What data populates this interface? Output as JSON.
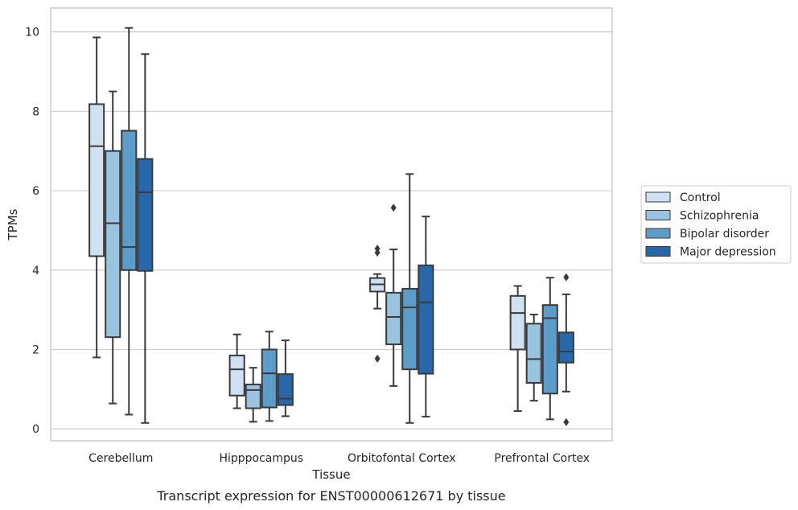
{
  "chart_data": {
    "type": "box",
    "title": "",
    "caption": "Transcript expression for ENST00000612671 by tissue",
    "xlabel": "Tissue",
    "ylabel": "TPMs",
    "ylim": [
      -0.3,
      10.6
    ],
    "yticks": [
      0,
      2,
      4,
      6,
      8,
      10
    ],
    "grid": "horizontal",
    "legend_position": "right",
    "categories": [
      "Cerebellum",
      "Hipppocampus",
      "Orbitofontal Cortex",
      "Prefrontal Cortex"
    ],
    "series": [
      {
        "name": "Control",
        "color": "#cfe0f0",
        "boxes": [
          {
            "whisker_low": 1.8,
            "q1": 4.35,
            "median": 7.12,
            "q3": 8.18,
            "whisker_high": 9.86,
            "outliers": []
          },
          {
            "whisker_low": 0.52,
            "q1": 0.84,
            "median": 1.5,
            "q3": 1.85,
            "whisker_high": 2.38,
            "outliers": []
          },
          {
            "whisker_low": 3.03,
            "q1": 3.46,
            "median": 3.64,
            "q3": 3.8,
            "whisker_high": 3.9,
            "outliers": [
              1.77,
              4.44,
              4.54
            ]
          },
          {
            "whisker_low": 0.45,
            "q1": 2.0,
            "median": 2.92,
            "q3": 3.35,
            "whisker_high": 3.6,
            "outliers": []
          }
        ]
      },
      {
        "name": "Schizophrenia",
        "color": "#9ac3df",
        "boxes": [
          {
            "whisker_low": 0.64,
            "q1": 2.31,
            "median": 5.18,
            "q3": 7.0,
            "whisker_high": 8.5,
            "outliers": []
          },
          {
            "whisker_low": 0.18,
            "q1": 0.52,
            "median": 0.98,
            "q3": 1.12,
            "whisker_high": 1.54,
            "outliers": []
          },
          {
            "whisker_low": 1.08,
            "q1": 2.13,
            "median": 2.82,
            "q3": 3.43,
            "whisker_high": 4.52,
            "outliers": [
              5.57
            ]
          },
          {
            "whisker_low": 0.71,
            "q1": 1.16,
            "median": 1.76,
            "q3": 2.65,
            "whisker_high": 2.88,
            "outliers": []
          }
        ]
      },
      {
        "name": "Bipolar disorder",
        "color": "#5b9cc9",
        "boxes": [
          {
            "whisker_low": 0.36,
            "q1": 4.0,
            "median": 4.58,
            "q3": 7.51,
            "whisker_high": 10.1,
            "outliers": []
          },
          {
            "whisker_low": 0.2,
            "q1": 0.54,
            "median": 1.4,
            "q3": 2.0,
            "whisker_high": 2.45,
            "outliers": []
          },
          {
            "whisker_low": 0.15,
            "q1": 1.5,
            "median": 3.06,
            "q3": 3.53,
            "whisker_high": 6.42,
            "outliers": []
          },
          {
            "whisker_low": 0.24,
            "q1": 0.89,
            "median": 2.79,
            "q3": 3.12,
            "whisker_high": 3.81,
            "outliers": []
          }
        ]
      },
      {
        "name": "Major depression",
        "color": "#2867a9",
        "boxes": [
          {
            "whisker_low": 0.15,
            "q1": 3.98,
            "median": 5.96,
            "q3": 6.8,
            "whisker_high": 9.44,
            "outliers": []
          },
          {
            "whisker_low": 0.32,
            "q1": 0.6,
            "median": 0.76,
            "q3": 1.38,
            "whisker_high": 2.23,
            "outliers": []
          },
          {
            "whisker_low": 0.31,
            "q1": 1.39,
            "median": 3.19,
            "q3": 4.12,
            "whisker_high": 5.35,
            "outliers": []
          },
          {
            "whisker_low": 0.94,
            "q1": 1.67,
            "median": 1.95,
            "q3": 2.43,
            "whisker_high": 3.39,
            "outliers": [
              0.17,
              3.82
            ]
          }
        ]
      }
    ]
  }
}
